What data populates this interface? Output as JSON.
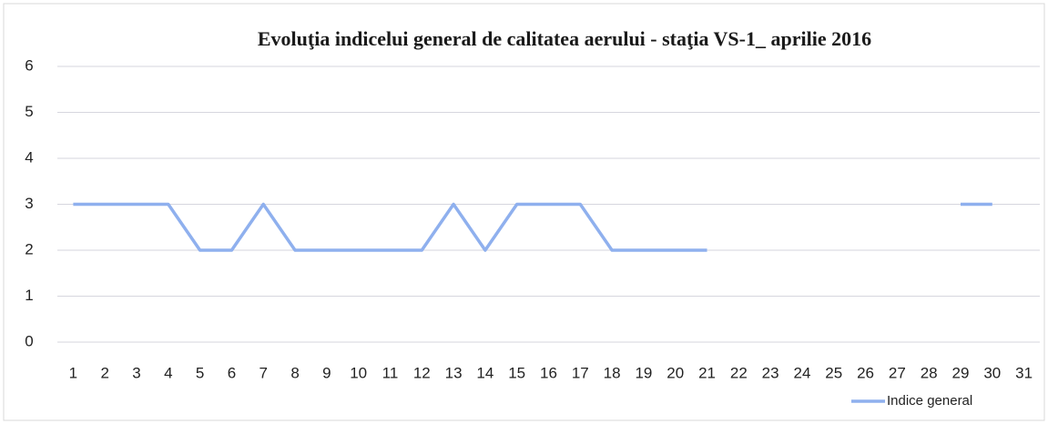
{
  "chart_data": {
    "type": "line",
    "title": "Evoluţia indicelui general de calitatea aerului - staţia VS-1_ aprilie 2016",
    "categories": [
      1,
      2,
      3,
      4,
      5,
      6,
      7,
      8,
      9,
      10,
      11,
      12,
      13,
      14,
      15,
      16,
      17,
      18,
      19,
      20,
      21,
      22,
      23,
      24,
      25,
      26,
      27,
      28,
      29,
      30,
      31
    ],
    "series": [
      {
        "name": "Indice general",
        "color": "#8fb0ee",
        "values": [
          3,
          3,
          3,
          3,
          2,
          2,
          3,
          2,
          2,
          2,
          2,
          2,
          3,
          2,
          3,
          3,
          3,
          2,
          2,
          2,
          2,
          null,
          null,
          null,
          null,
          null,
          null,
          null,
          3,
          3,
          null
        ]
      }
    ],
    "ylim": [
      0,
      6
    ],
    "yticks": [
      0,
      1,
      2,
      3,
      4,
      5,
      6
    ],
    "grid": true,
    "legend": "bottom-right"
  }
}
